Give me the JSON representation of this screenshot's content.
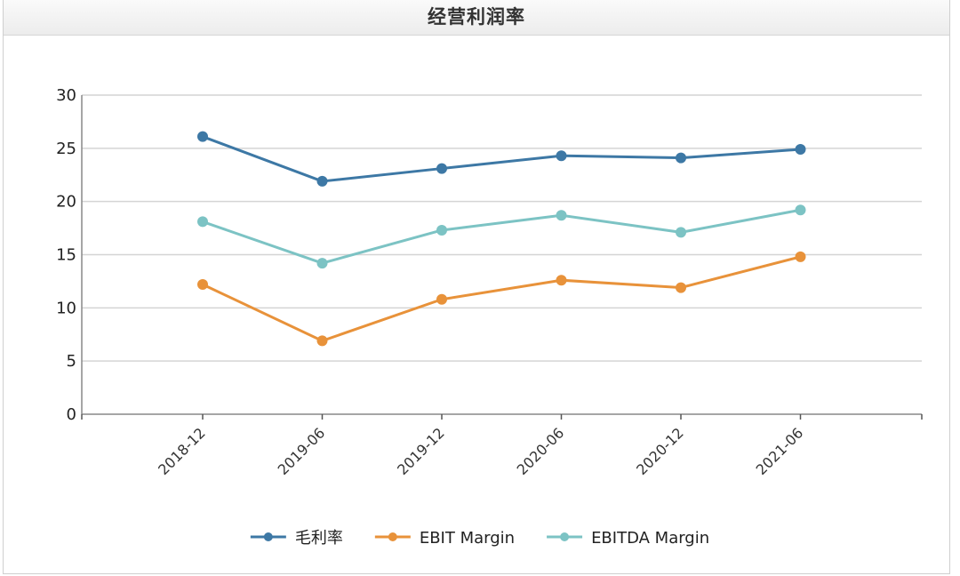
{
  "panel": {
    "title": "经营利润率"
  },
  "chart_data": {
    "type": "line",
    "title": "",
    "xlabel": "",
    "ylabel": "",
    "categories": [
      "2018-12",
      "2019-06",
      "2019-12",
      "2020-06",
      "2020-12",
      "2021-06"
    ],
    "ylim": [
      0,
      30
    ],
    "yticks": [
      0,
      5,
      10,
      15,
      20,
      25,
      30
    ],
    "grid": true,
    "legend_position": "bottom",
    "series": [
      {
        "name": "毛利率",
        "color": "#3d78a5",
        "values": [
          26.1,
          21.9,
          23.1,
          24.3,
          24.1,
          24.9
        ]
      },
      {
        "name": "EBIT Margin",
        "color": "#e8923a",
        "values": [
          12.2,
          6.9,
          10.8,
          12.6,
          11.9,
          14.8
        ]
      },
      {
        "name": "EBITDA Margin",
        "color": "#7cc3c4",
        "values": [
          18.1,
          14.2,
          17.3,
          18.7,
          17.1,
          19.2
        ]
      }
    ]
  }
}
